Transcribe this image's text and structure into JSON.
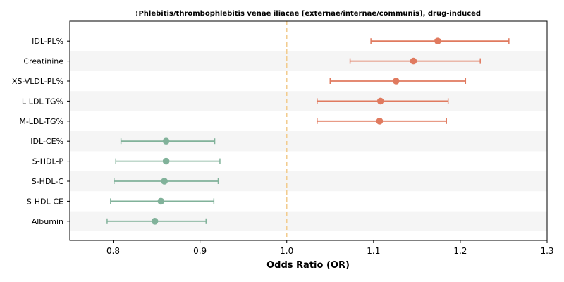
{
  "chart_data": {
    "type": "forest",
    "title": "!Phlebitis/thrombophlebitis venae iliacae [externae/internae/communis], drug-induced",
    "xlabel": "Odds Ratio (OR)",
    "xlim": [
      0.75,
      1.3
    ],
    "xticks": [
      "0.8",
      "0.9",
      "1.0",
      "1.1",
      "1.2",
      "1.3"
    ],
    "reference_line": 1.0,
    "colors": {
      "positive": "#e07a5f",
      "negative": "#81b29a",
      "reference": "#f2cc8f",
      "band": "#f5f5f5"
    },
    "rows": [
      {
        "label": "IDL-PL%",
        "or": 1.174,
        "lo": 1.097,
        "hi": 1.256
      },
      {
        "label": "Creatinine",
        "or": 1.146,
        "lo": 1.073,
        "hi": 1.223
      },
      {
        "label": "XS-VLDL-PL%",
        "or": 1.126,
        "lo": 1.05,
        "hi": 1.206
      },
      {
        "label": "L-LDL-TG%",
        "or": 1.108,
        "lo": 1.035,
        "hi": 1.186
      },
      {
        "label": "M-LDL-TG%",
        "or": 1.107,
        "lo": 1.035,
        "hi": 1.184
      },
      {
        "label": "IDL-CE%",
        "or": 0.861,
        "lo": 0.809,
        "hi": 0.917
      },
      {
        "label": "S-HDL-P",
        "or": 0.861,
        "lo": 0.803,
        "hi": 0.923
      },
      {
        "label": "S-HDL-C",
        "or": 0.859,
        "lo": 0.801,
        "hi": 0.921
      },
      {
        "label": "S-HDL-CE",
        "or": 0.855,
        "lo": 0.797,
        "hi": 0.916
      },
      {
        "label": "Albumin",
        "or": 0.848,
        "lo": 0.793,
        "hi": 0.907
      }
    ]
  }
}
